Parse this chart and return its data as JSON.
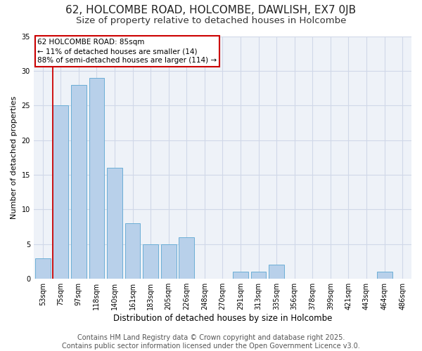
{
  "title": "62, HOLCOMBE ROAD, HOLCOMBE, DAWLISH, EX7 0JB",
  "subtitle": "Size of property relative to detached houses in Holcombe",
  "xlabel": "Distribution of detached houses by size in Holcombe",
  "ylabel": "Number of detached properties",
  "categories": [
    "53sqm",
    "75sqm",
    "97sqm",
    "118sqm",
    "140sqm",
    "161sqm",
    "183sqm",
    "205sqm",
    "226sqm",
    "248sqm",
    "270sqm",
    "291sqm",
    "313sqm",
    "335sqm",
    "356sqm",
    "378sqm",
    "399sqm",
    "421sqm",
    "443sqm",
    "464sqm",
    "486sqm"
  ],
  "values": [
    3,
    25,
    28,
    29,
    16,
    8,
    5,
    5,
    6,
    0,
    0,
    1,
    1,
    2,
    0,
    0,
    0,
    0,
    0,
    1,
    0
  ],
  "bar_color": "#b8d0ea",
  "bar_edge_color": "#6baed6",
  "vline_color": "#cc0000",
  "annotation_text": "62 HOLCOMBE ROAD: 85sqm\n← 11% of detached houses are smaller (14)\n88% of semi-detached houses are larger (114) →",
  "annotation_box_color": "#ffffff",
  "annotation_box_edge": "#cc0000",
  "ylim": [
    0,
    35
  ],
  "yticks": [
    0,
    5,
    10,
    15,
    20,
    25,
    30,
    35
  ],
  "grid_color": "#d0d8e8",
  "bg_color": "#eef2f8",
  "footer": "Contains HM Land Registry data © Crown copyright and database right 2025.\nContains public sector information licensed under the Open Government Licence v3.0.",
  "title_fontsize": 11,
  "subtitle_fontsize": 9.5,
  "footer_fontsize": 7,
  "ylabel_fontsize": 8,
  "xlabel_fontsize": 8.5,
  "annot_fontsize": 7.5,
  "tick_fontsize": 7
}
